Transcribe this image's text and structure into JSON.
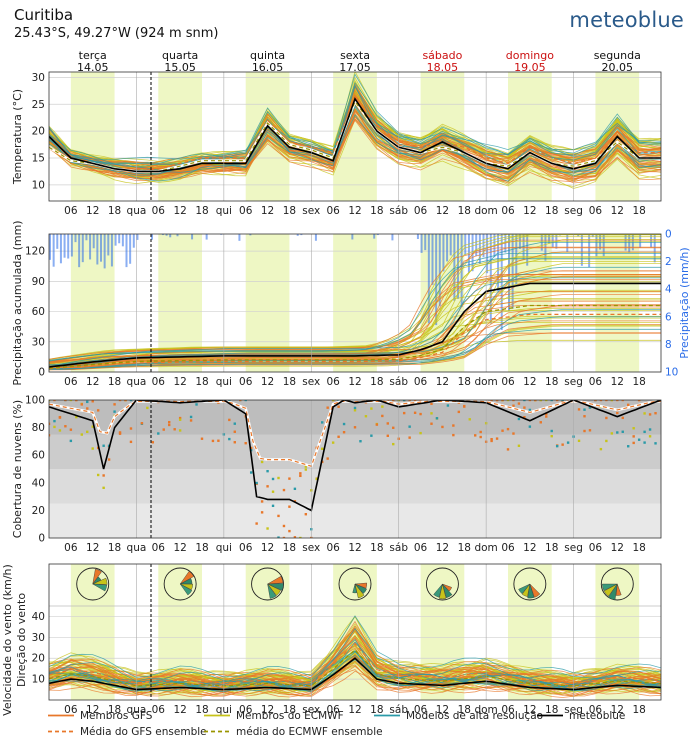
{
  "header": {
    "location": "Curitiba",
    "coords": "25.43°S, 49.27°W (924 m snm)",
    "brand": "meteoblue"
  },
  "days": [
    {
      "name": "terça",
      "date": "14.05",
      "weekend": false
    },
    {
      "name": "quarta",
      "date": "15.05",
      "weekend": false
    },
    {
      "name": "quinta",
      "date": "16.05",
      "weekend": false
    },
    {
      "name": "sexta",
      "date": "17.05",
      "weekend": false
    },
    {
      "name": "sábado",
      "date": "18.05",
      "weekend": true
    },
    {
      "name": "domingo",
      "date": "19.05",
      "weekend": true
    },
    {
      "name": "segunda",
      "date": "20.05",
      "weekend": false
    }
  ],
  "time_axis": {
    "hour_labels": [
      "06",
      "12",
      "18"
    ],
    "day_abbrevs": [
      "qua",
      "qui",
      "sex",
      "sáb",
      "dom",
      "seg"
    ]
  },
  "colors": {
    "gfs": "#e8772a",
    "ecmwf": "#c7c31a",
    "hires": "#2a9aa8",
    "meteoblue": "#000000",
    "precip_bar": "#2a6ce8",
    "daylight": "#eef7c4",
    "weekend_text": "#cc1111"
  },
  "legend": [
    {
      "label": "Membros GFS",
      "style": "gfs-solid"
    },
    {
      "label": "Membros do ECMWF",
      "style": "ecmwf-solid"
    },
    {
      "label": "Modelos de alta resolução",
      "style": "hires-solid"
    },
    {
      "label": "meteoblue",
      "style": "mb-solid"
    },
    {
      "label": "Média do GFS ensemble",
      "style": "gfs-dash"
    },
    {
      "label": "média do ECMWF ensemble",
      "style": "ecmwf-dash"
    }
  ],
  "chart_data": [
    {
      "type": "line",
      "ylabel": "Temperatura (°C)",
      "ylim": [
        7,
        31
      ],
      "yticks": [
        10,
        15,
        20,
        25,
        30
      ],
      "grid": true,
      "x_hours": [
        0,
        6,
        12,
        18,
        24,
        30,
        36,
        42,
        48,
        54,
        60,
        66,
        72,
        78,
        84,
        90,
        96,
        102,
        108,
        114,
        120,
        126,
        132,
        138,
        144,
        150,
        156,
        162,
        168
      ],
      "series": [
        {
          "name": "meteoblue",
          "values": [
            19,
            15,
            14,
            13,
            12.5,
            12.5,
            13,
            14,
            14,
            14,
            21,
            17,
            16,
            14.5,
            26,
            20,
            17,
            16,
            18,
            16,
            14,
            13,
            16,
            14,
            13,
            14,
            19,
            15,
            15
          ]
        },
        {
          "name": "Média do GFS ensemble",
          "values": [
            17,
            15,
            14,
            13,
            13,
            13,
            14,
            15,
            15,
            15,
            22,
            18,
            17,
            16,
            26,
            21,
            18,
            17,
            18,
            17,
            15,
            14,
            17,
            15,
            14,
            15,
            19,
            16,
            16
          ]
        },
        {
          "name": "média do ECMWF ensemble",
          "values": [
            17,
            14.5,
            14,
            13,
            12.5,
            12.5,
            13.5,
            14.5,
            14.5,
            14.5,
            21.5,
            17.5,
            16.5,
            15,
            25.5,
            20,
            17,
            16,
            17,
            16,
            14,
            13.5,
            16,
            14,
            13.5,
            14.5,
            18,
            15,
            15
          ]
        }
      ]
    },
    {
      "type": "bar",
      "ylabel": "Precipitação acumulada (mm)",
      "y2label": "Precipitação (mm/h)",
      "ylim": [
        0,
        137
      ],
      "yticks": [
        0,
        30,
        60,
        90,
        120
      ],
      "y2lim": [
        0,
        10
      ],
      "y2ticks": [
        0,
        2,
        4,
        6,
        8,
        10
      ],
      "x_hours": [
        0,
        12,
        24,
        36,
        48,
        60,
        72,
        84,
        96,
        102,
        108,
        114,
        120,
        132,
        144,
        156,
        168
      ],
      "accum_meteoblue": [
        5,
        10,
        14,
        15,
        16,
        16,
        16,
        16,
        17,
        22,
        30,
        60,
        80,
        88,
        88,
        88,
        88
      ]
    },
    {
      "type": "line",
      "ylabel": "Cobertura de nuvens (%)",
      "ylim": [
        0,
        100
      ],
      "yticks": [
        0,
        20,
        40,
        60,
        80,
        100
      ],
      "x_hours": [
        0,
        6,
        12,
        15,
        18,
        24,
        36,
        48,
        54,
        57,
        60,
        66,
        72,
        78,
        81,
        84,
        90,
        96,
        108,
        120,
        132,
        144,
        156,
        168
      ],
      "series": [
        {
          "name": "meteoblue",
          "values": [
            95,
            90,
            85,
            50,
            80,
            100,
            98,
            100,
            90,
            30,
            28,
            28,
            20,
            95,
            100,
            98,
            100,
            95,
            100,
            98,
            85,
            100,
            88,
            100
          ]
        }
      ]
    },
    {
      "type": "line",
      "ylabel": "Velocidade do vento (km/h)",
      "ylabel2": "Direção do vento",
      "ylim": [
        0,
        45
      ],
      "yticks": [
        10,
        20,
        30,
        40
      ],
      "x_hours": [
        0,
        6,
        12,
        18,
        24,
        36,
        48,
        60,
        72,
        78,
        84,
        90,
        96,
        108,
        120,
        132,
        144,
        156,
        168
      ],
      "series": [
        {
          "name": "meteoblue",
          "values": [
            8,
            10,
            9,
            7,
            5,
            6,
            5,
            6,
            5,
            12,
            20,
            10,
            8,
            7,
            9,
            6,
            5,
            7,
            6
          ]
        }
      ]
    }
  ]
}
